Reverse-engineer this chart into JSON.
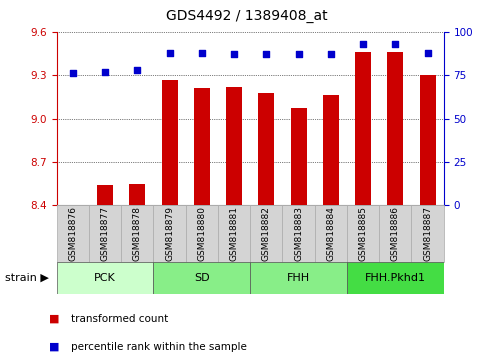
{
  "title": "GDS4492 / 1389408_at",
  "samples": [
    "GSM818876",
    "GSM818877",
    "GSM818878",
    "GSM818879",
    "GSM818880",
    "GSM818881",
    "GSM818882",
    "GSM818883",
    "GSM818884",
    "GSM818885",
    "GSM818886",
    "GSM818887"
  ],
  "bar_values": [
    8.405,
    8.54,
    8.55,
    9.27,
    9.21,
    9.22,
    9.18,
    9.07,
    9.16,
    9.46,
    9.46,
    9.3
  ],
  "percentile_values": [
    76,
    77,
    78,
    88,
    88,
    87,
    87,
    87,
    87,
    93,
    93,
    88
  ],
  "bar_color": "#cc0000",
  "percentile_color": "#0000cc",
  "ylim_left": [
    8.4,
    9.6
  ],
  "ylim_right": [
    0,
    100
  ],
  "yticks_left": [
    8.4,
    8.7,
    9.0,
    9.3,
    9.6
  ],
  "yticks_right": [
    0,
    25,
    50,
    75,
    100
  ],
  "groups": [
    {
      "label": "PCK",
      "start": 0,
      "end": 3,
      "color": "#ccffcc"
    },
    {
      "label": "SD",
      "start": 3,
      "end": 6,
      "color": "#88ee88"
    },
    {
      "label": "FHH",
      "start": 6,
      "end": 9,
      "color": "#88ee88"
    },
    {
      "label": "FHH.Pkhd1",
      "start": 9,
      "end": 12,
      "color": "#44dd44"
    }
  ],
  "legend_bar_label": "transformed count",
  "legend_pct_label": "percentile rank within the sample",
  "tick_color_left": "#cc0000",
  "tick_color_right": "#0000cc",
  "cell_color": "#d4d4d4",
  "cell_border_color": "#aaaaaa"
}
